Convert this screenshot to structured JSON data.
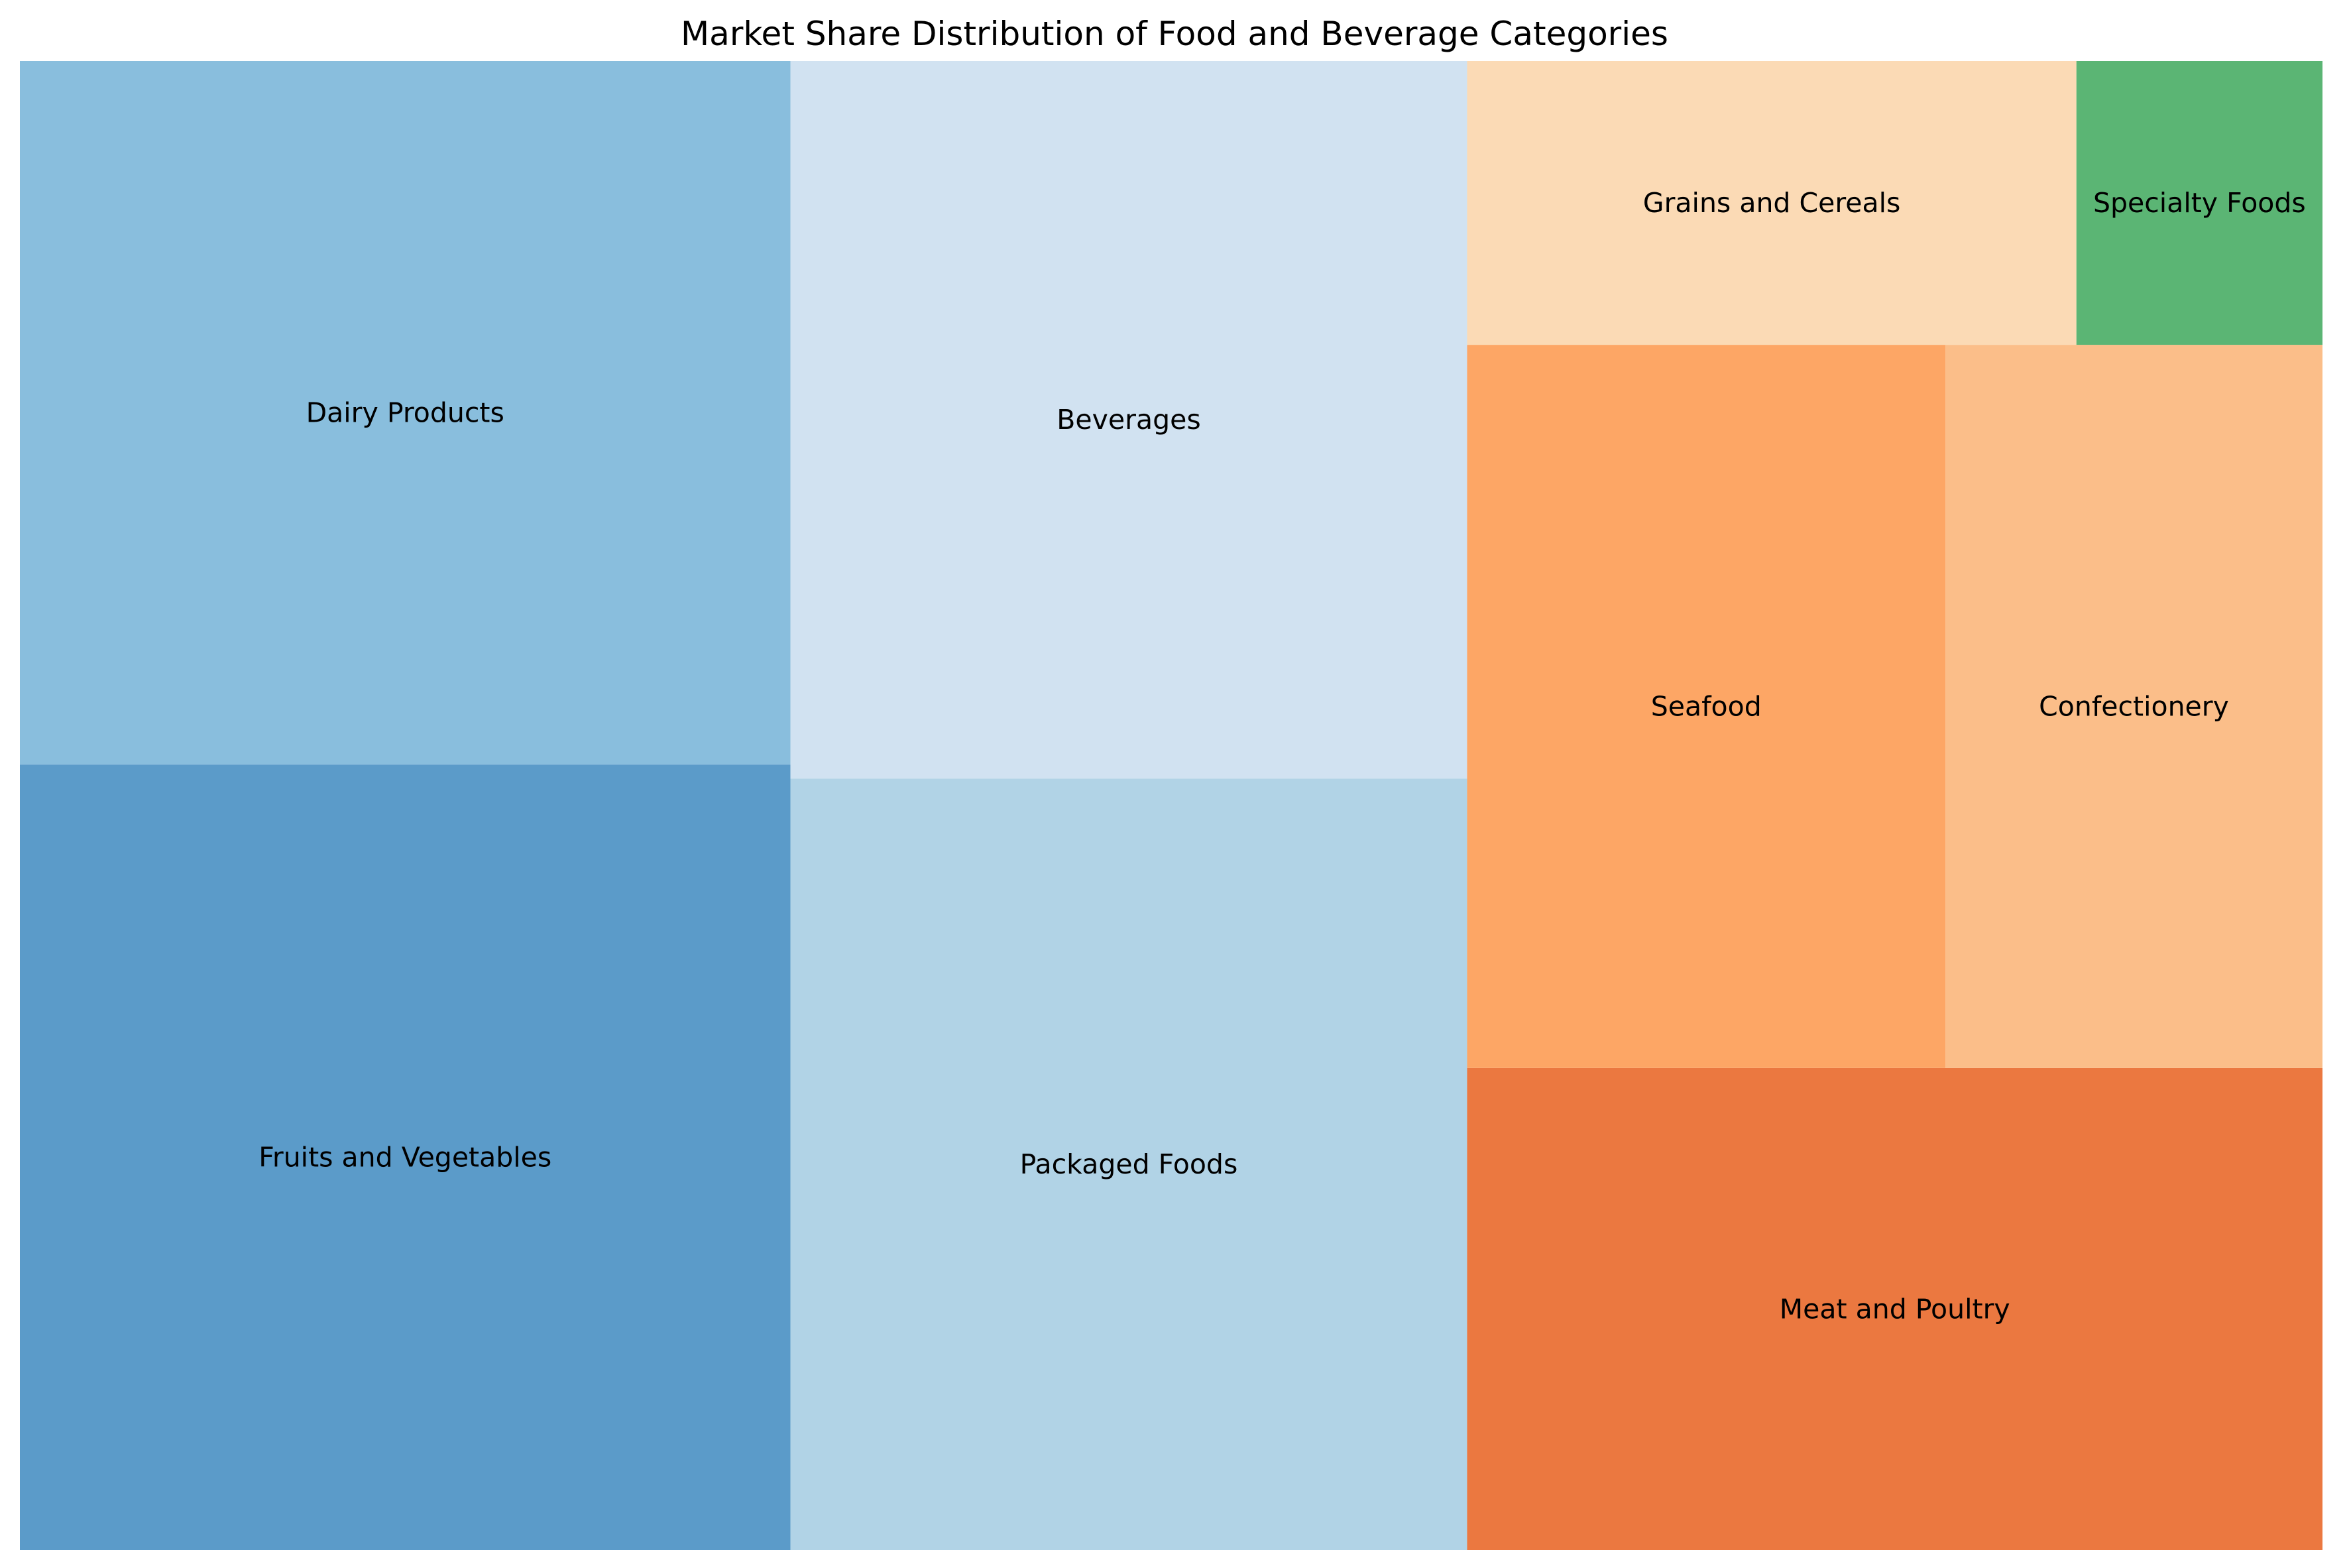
{
  "chart_data": {
    "type": "treemap",
    "title": "Market Share Distribution of Food and Beverage Categories",
    "value_unit": "relative area share",
    "items": [
      {
        "label": "Fruits and Vegetables",
        "value": 18.2,
        "color": "#5b9bc9"
      },
      {
        "label": "Dairy Products",
        "value": 16.3,
        "color": "#89bedd"
      },
      {
        "label": "Packaged Foods",
        "value": 15.7,
        "color": "#b1d3e6"
      },
      {
        "label": "Beverages",
        "value": 14.6,
        "color": "#d1e2f1"
      },
      {
        "label": "Meat and Poultry",
        "value": 12.4,
        "color": "#eb7840"
      },
      {
        "label": "Seafood",
        "value": 10.4,
        "color": "#fda665"
      },
      {
        "label": "Confectionery",
        "value": 8.2,
        "color": "#fbbe89"
      },
      {
        "label": "Grains and Cereals",
        "value": 5.2,
        "color": "#fbdab5"
      },
      {
        "label": "Specialty Foods",
        "value": 2.1,
        "color": "#5bb574"
      }
    ]
  }
}
